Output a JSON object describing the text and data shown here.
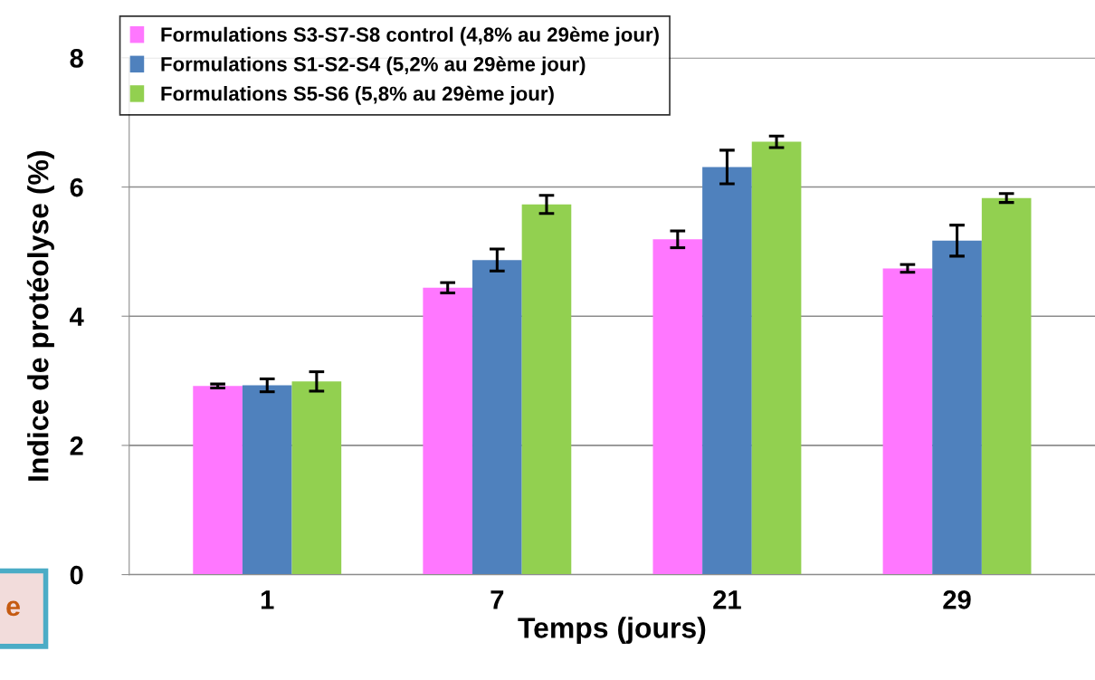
{
  "chart_data": {
    "type": "bar",
    "xlabel": "Temps (jours)",
    "ylabel": "Indice de protéolyse (%)",
    "categories": [
      "1",
      "7",
      "21",
      "29"
    ],
    "series": [
      {
        "name": "Formulations S3-S7-S8 control (4,8% au 29ème jour)",
        "color": "#ff77ff",
        "values": [
          2.92,
          4.44,
          5.19,
          4.74
        ],
        "errors": [
          0.03,
          0.08,
          0.13,
          0.06
        ]
      },
      {
        "name": "Formulations S1-S2-S4 (5,2% au 29ème jour)",
        "color": "#4f81bd",
        "values": [
          2.93,
          4.87,
          6.31,
          5.17
        ],
        "errors": [
          0.1,
          0.17,
          0.26,
          0.24
        ]
      },
      {
        "name": "Formulations S5-S6 (5,8% au 29ème jour)",
        "color": "#92d050",
        "values": [
          2.99,
          5.73,
          6.7,
          5.83
        ],
        "errors": [
          0.15,
          0.14,
          0.09,
          0.07
        ]
      }
    ],
    "ylim": [
      0,
      8
    ],
    "yticks": [
      0,
      2,
      4,
      6,
      8
    ],
    "grid": "y",
    "legend": "top left",
    "annotations": [
      "e"
    ]
  }
}
